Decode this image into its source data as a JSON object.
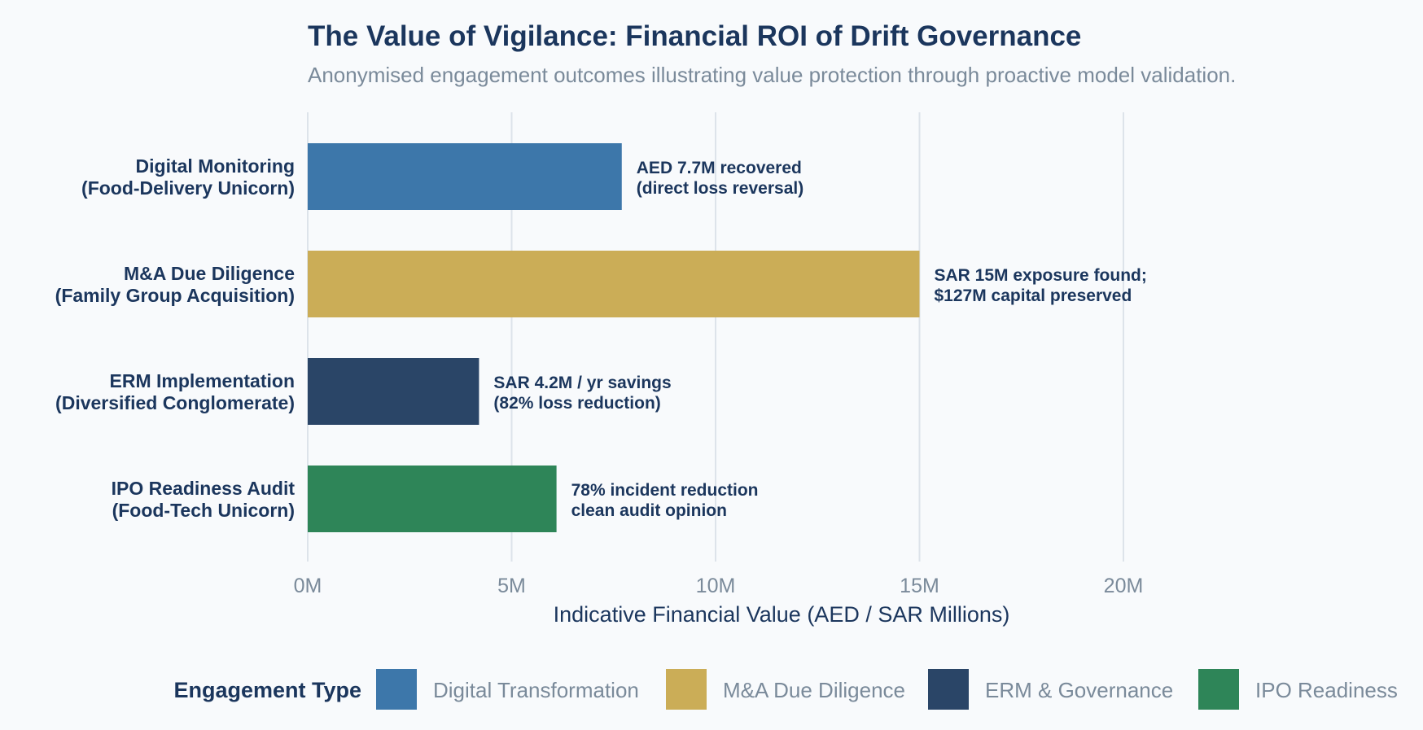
{
  "chart_data": {
    "type": "bar",
    "orientation": "horizontal",
    "title": "The Value of Vigilance: Financial ROI of Drift Governance",
    "subtitle": "Anonymised engagement outcomes illustrating value protection through proactive model validation.",
    "xlabel": "Indicative Financial Value (AED / SAR Millions)",
    "ylabel": "",
    "xlim": [
      0,
      24
    ],
    "xticks": [
      0,
      5,
      10,
      15,
      20
    ],
    "xtick_labels": [
      "0M",
      "5M",
      "10M",
      "15M",
      "20M"
    ],
    "grid": true,
    "legend_position": "bottom",
    "legend_title": "Engagement Type",
    "legend": [
      {
        "name": "Digital Transformation",
        "color": "#3d77aa"
      },
      {
        "name": "M&A Due Diligence",
        "color": "#cbad57"
      },
      {
        "name": "ERM & Governance",
        "color": "#2a4567"
      },
      {
        "name": "IPO Readiness",
        "color": "#2e8558"
      }
    ],
    "bars": [
      {
        "label_line1": "Digital Monitoring",
        "label_line2": "(Food-Delivery Unicorn)",
        "value": 7.7,
        "type": "Digital Transformation",
        "color": "#3d77aa",
        "annotation_line1": "AED 7.7M recovered",
        "annotation_line2": "(direct loss reversal)"
      },
      {
        "label_line1": "M&A Due Diligence",
        "label_line2": "(Family Group Acquisition)",
        "value": 15,
        "type": "M&A Due Diligence",
        "color": "#cbad57",
        "annotation_line1": "SAR 15M exposure found;",
        "annotation_line2": "$127M capital preserved"
      },
      {
        "label_line1": "ERM Implementation",
        "label_line2": "(Diversified Conglomerate)",
        "value": 4.2,
        "type": "ERM & Governance",
        "color": "#2a4567",
        "annotation_line1": "SAR 4.2M / yr savings",
        "annotation_line2": "(82% loss reduction)"
      },
      {
        "label_line1": "IPO Readiness Audit",
        "label_line2": "(Food-Tech Unicorn)",
        "value": 6.1,
        "type": "IPO Readiness",
        "color": "#2e8558",
        "annotation_line1": "78% incident reduction",
        "annotation_line2": "clean audit opinion"
      }
    ]
  }
}
